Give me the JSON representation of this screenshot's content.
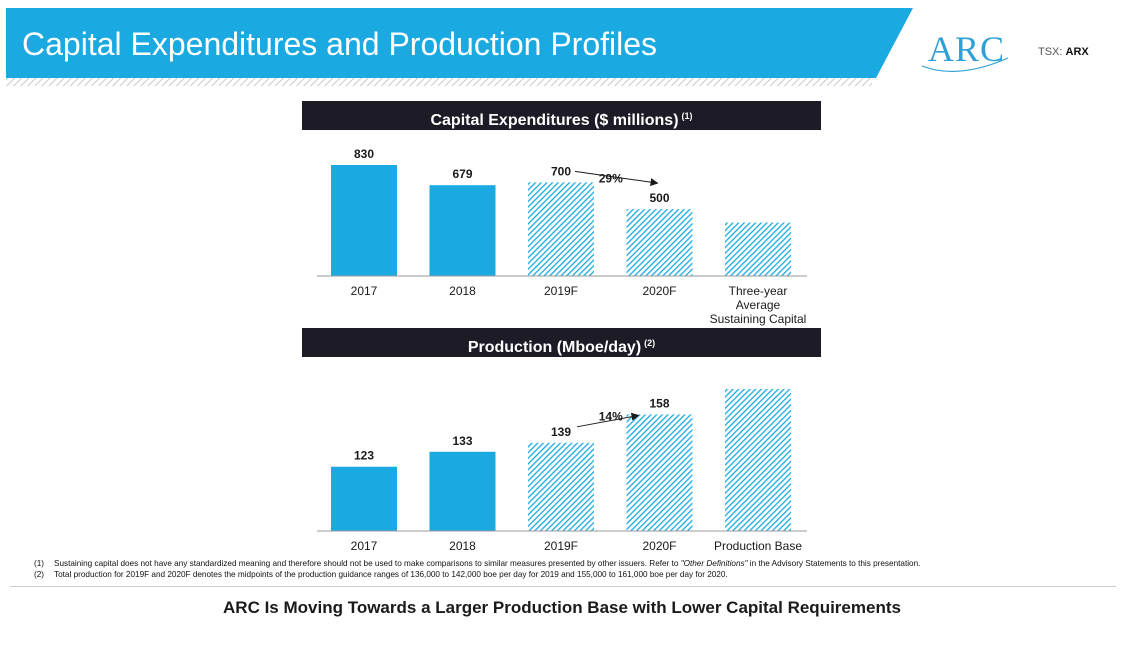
{
  "slide": {
    "title": "Capital Expenditures and Production Profiles",
    "logo_text": "ARC",
    "ticker_prefix": "TSX:",
    "ticker_symbol": "ARX",
    "tagline": "ARC Is Moving Towards a Larger Production Base with Lower Capital Requirements",
    "brand_color": "#1aa9e1",
    "header_color": "#1c1b26"
  },
  "footnotes": [
    {
      "num": "(1)",
      "text": "Sustaining capital does not have any standardized meaning and therefore should not be used to make comparisons to similar measures presented by other issuers. Refer to ",
      "italic": "\"Other Definitions\"",
      "text_after": " in the Advisory Statements to this presentation."
    },
    {
      "num": "(2)",
      "text": "Total production for 2019F and 2020F denotes the midpoints of the production guidance ranges of 136,000 to 142,000 boe per day for 2019 and 155,000 to 161,000 boe per day for 2020.",
      "italic": "",
      "text_after": ""
    }
  ],
  "chart_data": [
    {
      "type": "bar",
      "title": "Capital Expenditures ($ millions)",
      "title_note": "(1)",
      "categories": [
        "2017",
        "2018",
        "2019F",
        "2020F",
        "Three-year Average Sustaining Capital"
      ],
      "category_lines": [
        [
          "2017"
        ],
        [
          "2018"
        ],
        [
          "2019F"
        ],
        [
          "2020F"
        ],
        [
          "Three-year",
          "Average",
          "Sustaining Capital"
        ]
      ],
      "values": [
        830,
        679,
        700,
        500,
        400
      ],
      "value_labels": [
        "830",
        "679",
        "700",
        "500",
        ""
      ],
      "forecast": [
        false,
        false,
        true,
        true,
        true
      ],
      "ylim": [
        0,
        830
      ],
      "annotation": {
        "text": "29%",
        "from": 2,
        "to": 3
      },
      "solid_color": "#1aa9e1",
      "hatch_color": "#1aa9e1"
    },
    {
      "type": "bar",
      "title": "Production (Mboe/day)",
      "title_note": "(2)",
      "categories": [
        "2017",
        "2018",
        "2019F",
        "2020F",
        "Production Base"
      ],
      "category_lines": [
        [
          "2017"
        ],
        [
          "2018"
        ],
        [
          "2019F"
        ],
        [
          "2020F"
        ],
        [
          "Production Base"
        ]
      ],
      "values": [
        123,
        133,
        139,
        158,
        175
      ],
      "value_labels": [
        "123",
        "133",
        "139",
        "158",
        ""
      ],
      "forecast": [
        false,
        false,
        true,
        true,
        true
      ],
      "ylim": [
        80,
        175
      ],
      "annotation": {
        "text": "14%",
        "from": 2,
        "to": 3
      },
      "solid_color": "#1aa9e1",
      "hatch_color": "#1aa9e1"
    }
  ]
}
